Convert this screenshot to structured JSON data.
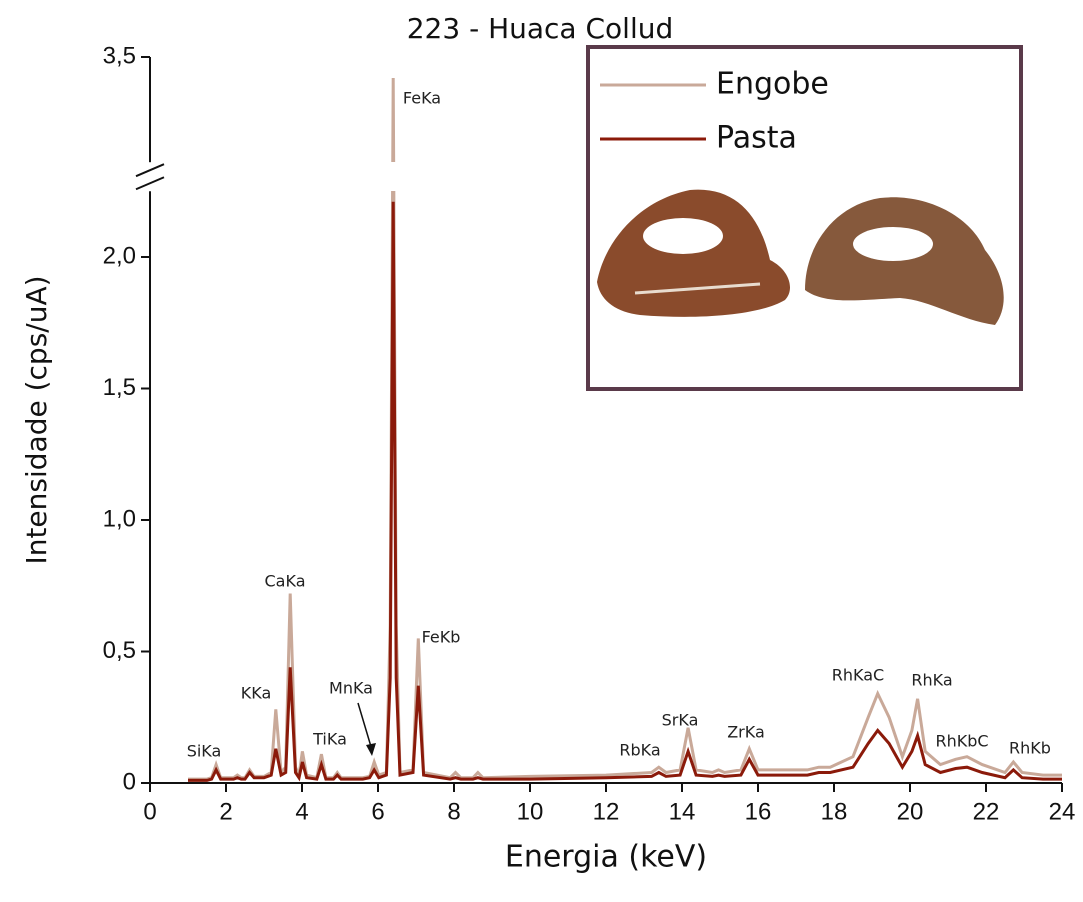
{
  "chart_data": {
    "type": "line",
    "title": "223 - Huaca Collud",
    "x_label": "Energia (keV)",
    "y_label": "Intensidade (cps/uA)",
    "xlim": [
      0,
      24
    ],
    "xticks": [
      0,
      2,
      4,
      6,
      8,
      10,
      12,
      14,
      16,
      18,
      20,
      22,
      24
    ],
    "ylim": [
      0,
      3.5
    ],
    "ybreak": [
      2.25,
      3.1
    ],
    "yticks": [
      0,
      {
        "value": 0.5,
        "label": "0,5"
      },
      {
        "value": 1.0,
        "label": "1,0"
      },
      {
        "value": 1.5,
        "label": "1,5"
      },
      {
        "value": 2.0,
        "label": "2,0"
      },
      {
        "value": 3.5,
        "label": "3,5"
      }
    ],
    "annotations": [
      "SiKa",
      "KKa",
      "CaKa",
      "TiKa",
      "MnKa",
      "FeKa",
      "FeKb",
      "RbKa",
      "SrKa",
      "ZrKa",
      "RhKaC",
      "RhKa",
      "RhKbC",
      "RhKb"
    ],
    "x": [
      1.0,
      1.5,
      1.62,
      1.74,
      1.86,
      2.2,
      2.3,
      2.4,
      2.5,
      2.62,
      2.74,
      3.0,
      3.19,
      3.31,
      3.45,
      3.57,
      3.69,
      3.83,
      3.92,
      4.01,
      4.12,
      4.39,
      4.51,
      4.63,
      4.83,
      4.93,
      5.03,
      5.6,
      5.78,
      5.9,
      6.02,
      6.22,
      6.32,
      6.4,
      6.48,
      6.58,
      6.92,
      7.06,
      7.2,
      7.9,
      8.04,
      8.18,
      8.5,
      8.63,
      8.76,
      10,
      12,
      13.2,
      13.39,
      13.58,
      13.95,
      14.16,
      14.37,
      14.8,
      14.96,
      15.12,
      15.55,
      15.77,
      16.0,
      17.3,
      17.6,
      17.9,
      18.5,
      18.9,
      19.15,
      19.45,
      19.8,
      20.05,
      20.2,
      20.4,
      20.8,
      21.2,
      21.5,
      21.9,
      22.5,
      22.72,
      22.95,
      23.5,
      24.0
    ],
    "series": [
      {
        "name": "Engobe",
        "color": "#c9a999",
        "values": [
          0.015,
          0.015,
          0.02,
          0.07,
          0.02,
          0.02,
          0.03,
          0.02,
          0.02,
          0.05,
          0.025,
          0.025,
          0.04,
          0.28,
          0.04,
          0.06,
          0.72,
          0.06,
          0.03,
          0.12,
          0.03,
          0.02,
          0.11,
          0.02,
          0.02,
          0.04,
          0.02,
          0.02,
          0.025,
          0.08,
          0.03,
          0.04,
          0.6,
          3.42,
          0.6,
          0.04,
          0.05,
          0.55,
          0.04,
          0.02,
          0.04,
          0.02,
          0.02,
          0.04,
          0.02,
          0.025,
          0.03,
          0.04,
          0.06,
          0.04,
          0.05,
          0.21,
          0.05,
          0.04,
          0.05,
          0.04,
          0.05,
          0.13,
          0.05,
          0.05,
          0.06,
          0.06,
          0.1,
          0.25,
          0.34,
          0.25,
          0.1,
          0.2,
          0.32,
          0.12,
          0.07,
          0.09,
          0.1,
          0.07,
          0.04,
          0.08,
          0.04,
          0.03,
          0.03
        ]
      },
      {
        "name": "Pasta",
        "color": "#8b1a0a",
        "values": [
          0.01,
          0.01,
          0.015,
          0.05,
          0.015,
          0.015,
          0.02,
          0.015,
          0.015,
          0.04,
          0.02,
          0.02,
          0.03,
          0.13,
          0.03,
          0.04,
          0.44,
          0.04,
          0.02,
          0.08,
          0.02,
          0.015,
          0.07,
          0.015,
          0.015,
          0.03,
          0.015,
          0.015,
          0.02,
          0.05,
          0.02,
          0.03,
          0.4,
          2.21,
          0.4,
          0.03,
          0.04,
          0.37,
          0.03,
          0.015,
          0.02,
          0.015,
          0.015,
          0.02,
          0.015,
          0.015,
          0.02,
          0.025,
          0.04,
          0.025,
          0.03,
          0.12,
          0.03,
          0.025,
          0.03,
          0.025,
          0.03,
          0.09,
          0.03,
          0.03,
          0.04,
          0.04,
          0.06,
          0.15,
          0.2,
          0.15,
          0.06,
          0.12,
          0.18,
          0.07,
          0.04,
          0.055,
          0.06,
          0.04,
          0.02,
          0.05,
          0.02,
          0.015,
          0.015
        ]
      }
    ]
  }
}
